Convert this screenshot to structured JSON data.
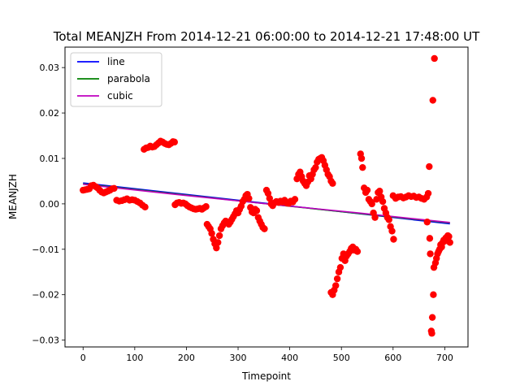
{
  "chart_data": {
    "type": "scatter",
    "title": "Total MEANJZH From 2014-12-21 06:00:00 to 2014-12-21 17:48:00 UT",
    "xlabel": "Timepoint",
    "ylabel": "MEANJZH",
    "xlim": [
      -35,
      745
    ],
    "ylim": [
      -0.0315,
      0.0345
    ],
    "xticks": [
      0,
      100,
      200,
      300,
      400,
      500,
      600,
      700
    ],
    "yticks": [
      -0.03,
      -0.02,
      -0.01,
      0.0,
      0.01,
      0.02,
      0.03
    ],
    "xtick_labels": [
      "0",
      "100",
      "200",
      "300",
      "400",
      "500",
      "600",
      "700"
    ],
    "ytick_labels": [
      "−0.03",
      "−0.02",
      "−0.01",
      "0.00",
      "0.01",
      "0.02",
      "0.03"
    ],
    "grid": false,
    "legend_position": "top-left",
    "scatter_color": "#ff0000",
    "points": [
      [
        0,
        0.003
      ],
      [
        4,
        0.0031
      ],
      [
        8,
        0.0032
      ],
      [
        12,
        0.0033
      ],
      [
        16,
        0.004
      ],
      [
        20,
        0.0041
      ],
      [
        24,
        0.0038
      ],
      [
        28,
        0.0035
      ],
      [
        32,
        0.003
      ],
      [
        36,
        0.0026
      ],
      [
        40,
        0.0024
      ],
      [
        44,
        0.0026
      ],
      [
        48,
        0.0028
      ],
      [
        52,
        0.003
      ],
      [
        56,
        0.0033
      ],
      [
        60,
        0.0034
      ],
      [
        65,
        0.0008
      ],
      [
        70,
        0.0006
      ],
      [
        75,
        0.0007
      ],
      [
        80,
        0.0009
      ],
      [
        85,
        0.0011
      ],
      [
        90,
        0.0008
      ],
      [
        95,
        0.0009
      ],
      [
        100,
        0.0008
      ],
      [
        105,
        0.0005
      ],
      [
        110,
        0.0002
      ],
      [
        115,
        -0.0003
      ],
      [
        120,
        -0.0007
      ],
      [
        118,
        0.012
      ],
      [
        122,
        0.0123
      ],
      [
        126,
        0.0124
      ],
      [
        130,
        0.0127
      ],
      [
        134,
        0.0125
      ],
      [
        138,
        0.0126
      ],
      [
        142,
        0.013
      ],
      [
        146,
        0.0134
      ],
      [
        150,
        0.0138
      ],
      [
        154,
        0.0136
      ],
      [
        158,
        0.0133
      ],
      [
        162,
        0.0131
      ],
      [
        166,
        0.013
      ],
      [
        170,
        0.0133
      ],
      [
        174,
        0.0137
      ],
      [
        177,
        0.0136
      ],
      [
        178,
        -0.0002
      ],
      [
        182,
        0.0002
      ],
      [
        186,
        0.0003
      ],
      [
        190,
        0.0001
      ],
      [
        194,
        0.0002
      ],
      [
        198,
        0.0
      ],
      [
        202,
        -0.0004
      ],
      [
        206,
        -0.0007
      ],
      [
        210,
        -0.0009
      ],
      [
        214,
        -0.0011
      ],
      [
        218,
        -0.0012
      ],
      [
        222,
        -0.0011
      ],
      [
        226,
        -0.001
      ],
      [
        230,
        -0.0012
      ],
      [
        234,
        -0.0009
      ],
      [
        238,
        -0.0006
      ],
      [
        240,
        -0.0045
      ],
      [
        243,
        -0.005
      ],
      [
        246,
        -0.0055
      ],
      [
        249,
        -0.0065
      ],
      [
        252,
        -0.0078
      ],
      [
        255,
        -0.0088
      ],
      [
        258,
        -0.0097
      ],
      [
        261,
        -0.0085
      ],
      [
        264,
        -0.007
      ],
      [
        267,
        -0.0055
      ],
      [
        270,
        -0.0048
      ],
      [
        273,
        -0.0042
      ],
      [
        276,
        -0.0038
      ],
      [
        279,
        -0.004
      ],
      [
        282,
        -0.0045
      ],
      [
        285,
        -0.004
      ],
      [
        288,
        -0.0034
      ],
      [
        291,
        -0.0028
      ],
      [
        294,
        -0.0022
      ],
      [
        297,
        -0.0015
      ],
      [
        300,
        -0.002
      ],
      [
        303,
        -0.0012
      ],
      [
        306,
        -0.0005
      ],
      [
        309,
        0.0005
      ],
      [
        312,
        0.001
      ],
      [
        315,
        0.0018
      ],
      [
        318,
        0.0021
      ],
      [
        321,
        0.0012
      ],
      [
        324,
        -0.0008
      ],
      [
        327,
        -0.0018
      ],
      [
        330,
        -0.002
      ],
      [
        333,
        -0.0012
      ],
      [
        336,
        -0.0015
      ],
      [
        339,
        -0.003
      ],
      [
        342,
        -0.0038
      ],
      [
        345,
        -0.0045
      ],
      [
        348,
        -0.0052
      ],
      [
        351,
        -0.0055
      ],
      [
        355,
        0.003
      ],
      [
        358,
        0.0023
      ],
      [
        361,
        0.0012
      ],
      [
        364,
        0.0
      ],
      [
        367,
        -0.0004
      ],
      [
        370,
        0.0002
      ],
      [
        374,
        0.0005
      ],
      [
        378,
        0.0003
      ],
      [
        382,
        0.0006
      ],
      [
        386,
        0.0004
      ],
      [
        390,
        0.0008
      ],
      [
        394,
        0.0002
      ],
      [
        398,
        0.0001
      ],
      [
        402,
        0.0006
      ],
      [
        406,
        0.0004
      ],
      [
        410,
        0.001
      ],
      [
        414,
        0.0055
      ],
      [
        417,
        0.0065
      ],
      [
        420,
        0.007
      ],
      [
        423,
        0.006
      ],
      [
        426,
        0.005
      ],
      [
        429,
        0.0045
      ],
      [
        432,
        0.004
      ],
      [
        435,
        0.0048
      ],
      [
        438,
        0.0062
      ],
      [
        441,
        0.0055
      ],
      [
        444,
        0.0065
      ],
      [
        447,
        0.0075
      ],
      [
        450,
        0.008
      ],
      [
        453,
        0.0092
      ],
      [
        456,
        0.0098
      ],
      [
        459,
        0.01
      ],
      [
        462,
        0.0102
      ],
      [
        465,
        0.0095
      ],
      [
        468,
        0.0085
      ],
      [
        471,
        0.0075
      ],
      [
        474,
        0.0065
      ],
      [
        477,
        0.006
      ],
      [
        480,
        0.005
      ],
      [
        483,
        0.0045
      ],
      [
        480,
        -0.0195
      ],
      [
        483,
        -0.02
      ],
      [
        486,
        -0.019
      ],
      [
        489,
        -0.018
      ],
      [
        492,
        -0.0165
      ],
      [
        495,
        -0.015
      ],
      [
        498,
        -0.014
      ],
      [
        501,
        -0.012
      ],
      [
        504,
        -0.011
      ],
      [
        507,
        -0.0125
      ],
      [
        510,
        -0.0115
      ],
      [
        513,
        -0.011
      ],
      [
        516,
        -0.0105
      ],
      [
        519,
        -0.0098
      ],
      [
        522,
        -0.0095
      ],
      [
        525,
        -0.0102
      ],
      [
        528,
        -0.01
      ],
      [
        531,
        -0.0105
      ],
      [
        537,
        0.011
      ],
      [
        539,
        0.01
      ],
      [
        541,
        0.008
      ],
      [
        544,
        0.0035
      ],
      [
        547,
        0.0025
      ],
      [
        550,
        0.003
      ],
      [
        553,
        0.001
      ],
      [
        556,
        0.0005
      ],
      [
        559,
        0.0
      ],
      [
        562,
        -0.002
      ],
      [
        565,
        -0.003
      ],
      [
        568,
        0.001
      ],
      [
        571,
        0.0025
      ],
      [
        574,
        0.0028
      ],
      [
        577,
        0.0015
      ],
      [
        580,
        0.0005
      ],
      [
        583,
        -0.001
      ],
      [
        586,
        -0.002
      ],
      [
        589,
        -0.003
      ],
      [
        592,
        -0.0035
      ],
      [
        595,
        -0.005
      ],
      [
        598,
        -0.006
      ],
      [
        601,
        -0.0078
      ],
      [
        600,
        0.0018
      ],
      [
        605,
        0.0012
      ],
      [
        610,
        0.0015
      ],
      [
        615,
        0.0016
      ],
      [
        620,
        0.0013
      ],
      [
        625,
        0.0015
      ],
      [
        630,
        0.0018
      ],
      [
        635,
        0.0016
      ],
      [
        640,
        0.0017
      ],
      [
        645,
        0.0014
      ],
      [
        650,
        0.0015
      ],
      [
        655,
        0.0012
      ],
      [
        660,
        0.001
      ],
      [
        665,
        0.0015
      ],
      [
        668,
        0.0023
      ],
      [
        666,
        -0.004
      ],
      [
        670,
        0.0082
      ],
      [
        671,
        -0.0076
      ],
      [
        672,
        -0.011
      ],
      [
        674,
        -0.028
      ],
      [
        675,
        -0.0285
      ],
      [
        676,
        -0.025
      ],
      [
        677,
        0.0228
      ],
      [
        678,
        -0.02
      ],
      [
        679,
        -0.014
      ],
      [
        680,
        0.032
      ],
      [
        682,
        -0.013
      ],
      [
        684,
        -0.012
      ],
      [
        686,
        -0.011
      ],
      [
        688,
        -0.0105
      ],
      [
        690,
        -0.01
      ],
      [
        692,
        -0.009
      ],
      [
        694,
        -0.0095
      ],
      [
        696,
        -0.0085
      ],
      [
        698,
        -0.008
      ],
      [
        700,
        -0.0082
      ],
      [
        702,
        -0.0075
      ],
      [
        704,
        -0.0078
      ],
      [
        706,
        -0.007
      ],
      [
        708,
        -0.0072
      ],
      [
        710,
        -0.0085
      ]
    ],
    "series": [
      {
        "name": "line",
        "color": "#0000ff",
        "x": [
          0,
          710
        ],
        "y": [
          0.0046,
          -0.0044
        ]
      },
      {
        "name": "parabola",
        "color": "#008000",
        "x": [
          0,
          355,
          710
        ],
        "y": [
          0.0044,
          0.0,
          -0.0042
        ]
      },
      {
        "name": "cubic",
        "color": "#bf00bf",
        "x": [
          0,
          178,
          355,
          533,
          710
        ],
        "y": [
          0.0043,
          0.0021,
          0.0,
          -0.002,
          -0.0041
        ]
      }
    ]
  }
}
